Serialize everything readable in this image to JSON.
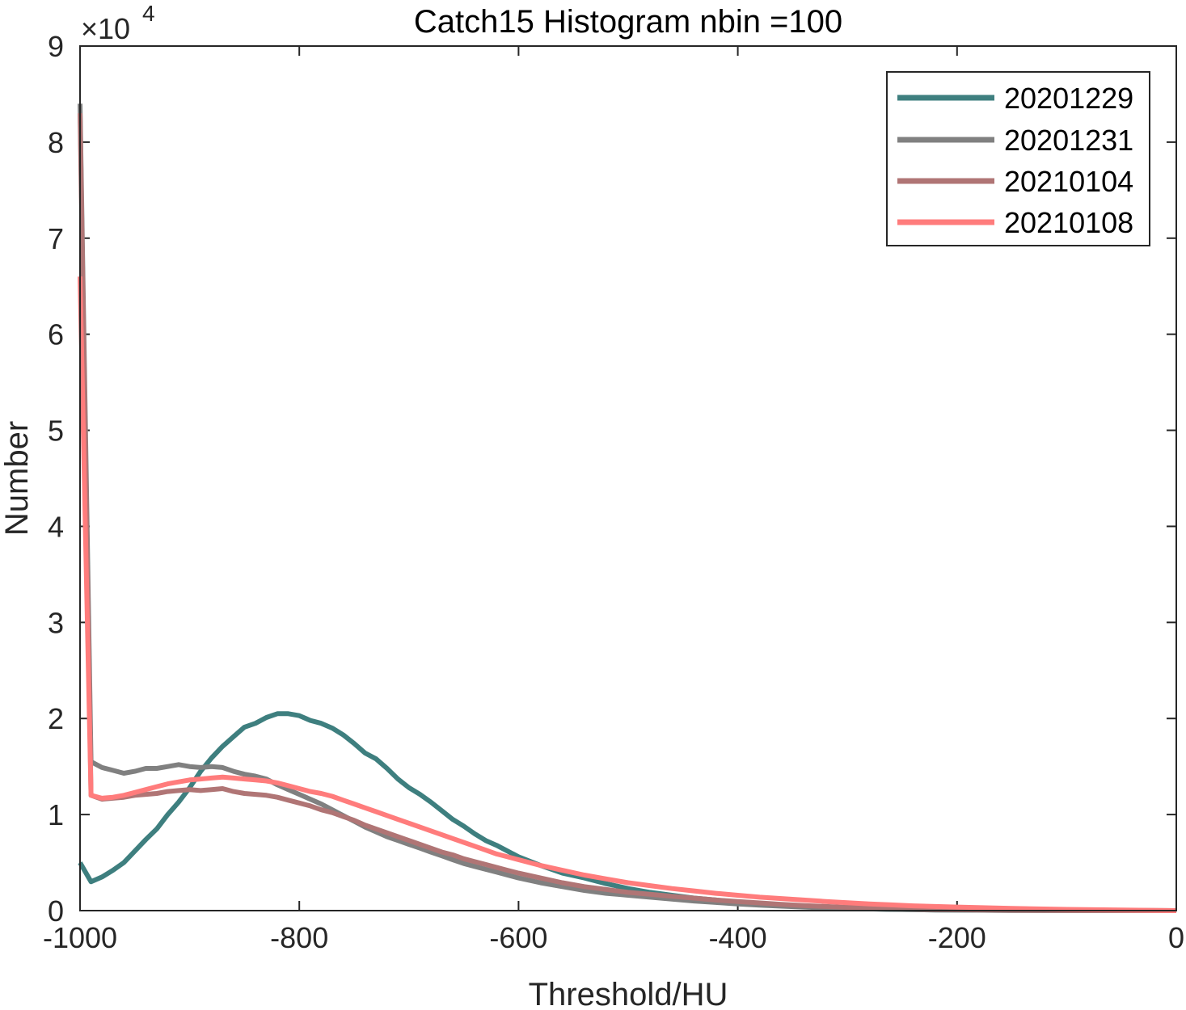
{
  "chart_data": {
    "type": "line",
    "title": "Catch15  Histogram nbin =100",
    "xlabel": "Threshold/HU",
    "ylabel": "Number",
    "xlim": [
      -1000,
      0
    ],
    "ylim": [
      0,
      90000
    ],
    "y_exponent_label": "×10",
    "y_exponent_power": "4",
    "grid": false,
    "legend_position": "top-right",
    "x_ticks": [
      -1000,
      -800,
      -600,
      -400,
      -200,
      0
    ],
    "x_tick_labels": [
      "-1000",
      "-800",
      "-600",
      "-400",
      "-200",
      "0"
    ],
    "y_ticks": [
      0,
      10000,
      20000,
      30000,
      40000,
      50000,
      60000,
      70000,
      80000,
      90000
    ],
    "y_tick_labels": [
      "0",
      "1",
      "2",
      "3",
      "4",
      "5",
      "6",
      "7",
      "8",
      "9"
    ],
    "series": [
      {
        "name": "20201229",
        "color": "#3e7f7f",
        "x": [
          -1000,
          -990,
          -980,
          -970,
          -960,
          -950,
          -940,
          -930,
          -920,
          -910,
          -900,
          -890,
          -880,
          -870,
          -860,
          -850,
          -840,
          -830,
          -820,
          -810,
          -800,
          -790,
          -780,
          -770,
          -760,
          -750,
          -740,
          -730,
          -720,
          -710,
          -700,
          -690,
          -680,
          -670,
          -660,
          -650,
          -640,
          -630,
          -620,
          -610,
          -600,
          -580,
          -560,
          -540,
          -520,
          -500,
          -480,
          -460,
          -440,
          -420,
          -400,
          -380,
          -360,
          -340,
          -320,
          -300,
          -280,
          -260,
          -240,
          -220,
          -200,
          -150,
          -100,
          -50,
          0
        ],
        "y": [
          5000,
          3000,
          3500,
          4200,
          5000,
          6200,
          7400,
          8500,
          10000,
          11300,
          12800,
          14500,
          15900,
          17100,
          18100,
          19100,
          19500,
          20100,
          20500,
          20500,
          20300,
          19800,
          19500,
          19000,
          18300,
          17400,
          16400,
          15800,
          14800,
          13700,
          12800,
          12100,
          11300,
          10400,
          9500,
          8800,
          8000,
          7300,
          6800,
          6200,
          5600,
          4700,
          3900,
          3400,
          2800,
          2300,
          1900,
          1600,
          1300,
          1100,
          900,
          700,
          550,
          420,
          320,
          240,
          180,
          130,
          100,
          70,
          50,
          25,
          12,
          5,
          0
        ]
      },
      {
        "name": "20201231",
        "color": "#808080",
        "x": [
          -1000,
          -990,
          -980,
          -970,
          -960,
          -950,
          -940,
          -930,
          -920,
          -910,
          -900,
          -890,
          -880,
          -870,
          -860,
          -850,
          -840,
          -830,
          -820,
          -810,
          -800,
          -790,
          -780,
          -770,
          -760,
          -750,
          -740,
          -730,
          -720,
          -710,
          -700,
          -690,
          -680,
          -670,
          -660,
          -650,
          -640,
          -630,
          -620,
          -610,
          -600,
          -580,
          -560,
          -540,
          -520,
          -500,
          -480,
          -460,
          -440,
          -420,
          -400,
          -380,
          -360,
          -340,
          -320,
          -300,
          -280,
          -260,
          -240,
          -220,
          -200,
          -150,
          -100,
          -50,
          0
        ],
        "y": [
          84000,
          15500,
          14900,
          14600,
          14300,
          14500,
          14800,
          14800,
          15000,
          15200,
          15000,
          14900,
          15000,
          14900,
          14500,
          14200,
          14000,
          13700,
          13100,
          12600,
          12100,
          11600,
          11100,
          10500,
          9900,
          9300,
          8700,
          8200,
          7700,
          7300,
          6900,
          6500,
          6100,
          5700,
          5300,
          4900,
          4600,
          4300,
          4000,
          3700,
          3400,
          2900,
          2500,
          2100,
          1800,
          1600,
          1400,
          1200,
          1000,
          850,
          700,
          570,
          460,
          370,
          290,
          230,
          180,
          140,
          100,
          75,
          55,
          25,
          12,
          5,
          0
        ]
      },
      {
        "name": "20210104",
        "color": "#b07575",
        "x": [
          -1000,
          -990,
          -980,
          -970,
          -960,
          -950,
          -940,
          -930,
          -920,
          -910,
          -900,
          -890,
          -880,
          -870,
          -860,
          -850,
          -840,
          -830,
          -820,
          -810,
          -800,
          -790,
          -780,
          -770,
          -760,
          -750,
          -740,
          -730,
          -720,
          -710,
          -700,
          -690,
          -680,
          -670,
          -660,
          -650,
          -640,
          -630,
          -620,
          -610,
          -600,
          -580,
          -560,
          -540,
          -520,
          -500,
          -480,
          -460,
          -440,
          -420,
          -400,
          -380,
          -360,
          -340,
          -320,
          -300,
          -280,
          -260,
          -240,
          -220,
          -200,
          -150,
          -100,
          -50,
          0
        ],
        "y": [
          83000,
          12000,
          11600,
          11700,
          11800,
          12000,
          12100,
          12200,
          12400,
          12500,
          12600,
          12500,
          12600,
          12700,
          12400,
          12200,
          12100,
          12000,
          11800,
          11500,
          11200,
          10900,
          10500,
          10200,
          9800,
          9400,
          8900,
          8500,
          8100,
          7700,
          7300,
          6900,
          6500,
          6100,
          5800,
          5400,
          5100,
          4800,
          4500,
          4200,
          3900,
          3400,
          2900,
          2500,
          2200,
          1900,
          1700,
          1500,
          1300,
          1100,
          950,
          800,
          650,
          530,
          430,
          340,
          270,
          210,
          160,
          120,
          90,
          45,
          20,
          8,
          0
        ]
      },
      {
        "name": "20210108",
        "color": "#ff7c7c",
        "x": [
          -1000,
          -990,
          -980,
          -970,
          -960,
          -950,
          -940,
          -930,
          -920,
          -910,
          -900,
          -890,
          -880,
          -870,
          -860,
          -850,
          -840,
          -830,
          -820,
          -810,
          -800,
          -790,
          -780,
          -770,
          -760,
          -750,
          -740,
          -730,
          -720,
          -710,
          -700,
          -690,
          -680,
          -670,
          -660,
          -650,
          -640,
          -630,
          -620,
          -610,
          -600,
          -580,
          -560,
          -540,
          -520,
          -500,
          -480,
          -460,
          -440,
          -420,
          -400,
          -380,
          -360,
          -340,
          -320,
          -300,
          -280,
          -260,
          -240,
          -220,
          -200,
          -150,
          -100,
          -50,
          0
        ],
        "y": [
          66000,
          12000,
          11700,
          11800,
          12000,
          12300,
          12600,
          12900,
          13200,
          13400,
          13600,
          13700,
          13800,
          13900,
          13800,
          13700,
          13600,
          13500,
          13300,
          13000,
          12700,
          12400,
          12200,
          11900,
          11500,
          11100,
          10700,
          10300,
          9900,
          9500,
          9100,
          8700,
          8300,
          7900,
          7500,
          7100,
          6700,
          6300,
          5900,
          5600,
          5300,
          4700,
          4200,
          3700,
          3300,
          2900,
          2600,
          2300,
          2050,
          1800,
          1600,
          1400,
          1250,
          1100,
          950,
          820,
          700,
          600,
          500,
          430,
          370,
          230,
          130,
          60,
          0
        ]
      }
    ]
  }
}
